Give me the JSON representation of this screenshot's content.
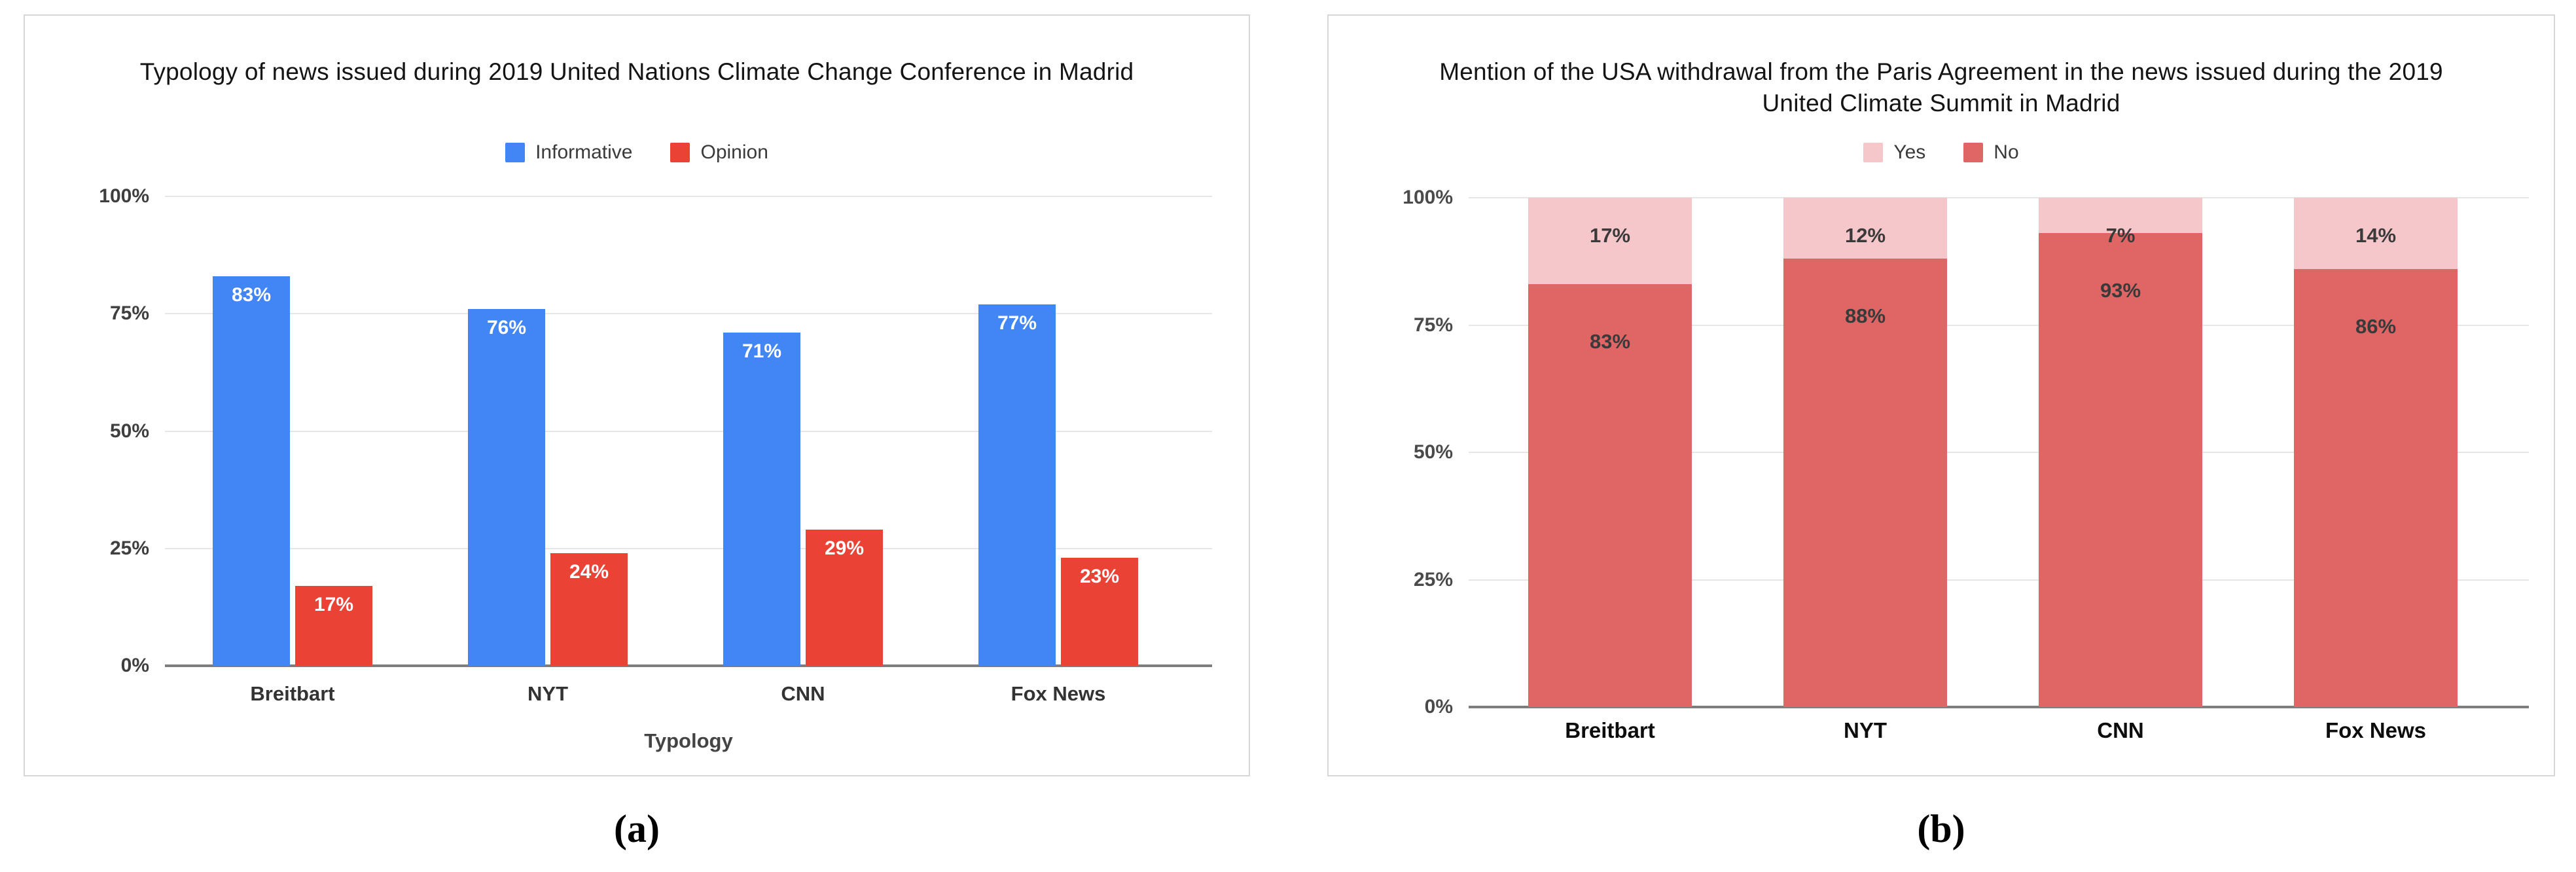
{
  "figure": {
    "caption_a": "(a)",
    "caption_b": "(b)"
  },
  "chart_data": [
    {
      "key": "a",
      "type": "bar",
      "title": "Typology of news issued during 2019 United Nations Climate Change Conference in Madrid",
      "categories": [
        "Breitbart",
        "NYT",
        "CNN",
        "Fox News"
      ],
      "series": [
        {
          "name": "Informative",
          "color": "#4285F4",
          "values": [
            83,
            76,
            71,
            77
          ]
        },
        {
          "name": "Opinion",
          "color": "#EA4335",
          "values": [
            17,
            24,
            29,
            23
          ]
        }
      ],
      "value_label_suffix": "%",
      "stacked": false,
      "xlabel": "Typology",
      "ylabel": "",
      "yticks": [
        "0%",
        "25%",
        "50%",
        "75%",
        "100%"
      ],
      "ylim": [
        0,
        100
      ],
      "grid": true,
      "legend_position": "top"
    },
    {
      "key": "b",
      "type": "bar",
      "title": "Mention of the USA withdrawal from the Paris Agreement in the news issued during the 2019 United Climate Summit in Madrid",
      "categories": [
        "Breitbart",
        "NYT",
        "CNN",
        "Fox News"
      ],
      "series": [
        {
          "name": "Yes",
          "color": "#F5C7CB",
          "values": [
            17,
            12,
            7,
            14
          ]
        },
        {
          "name": "No",
          "color": "#E06666",
          "values": [
            83,
            88,
            93,
            86
          ]
        }
      ],
      "value_label_suffix": "%",
      "stacked": true,
      "stack_order": "top-to-bottom",
      "xlabel": "",
      "ylabel": "",
      "yticks": [
        "0%",
        "25%",
        "50%",
        "75%",
        "100%"
      ],
      "ylim": [
        0,
        100
      ],
      "grid": true,
      "legend_position": "top"
    }
  ]
}
